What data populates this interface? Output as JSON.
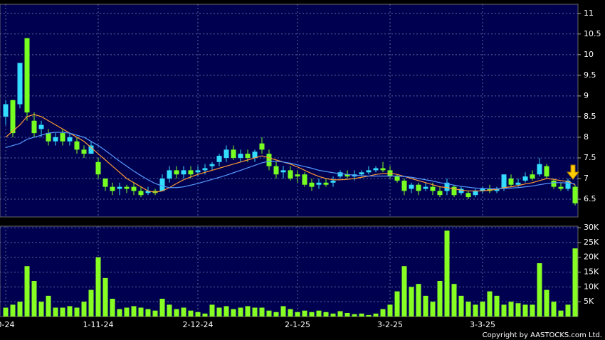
{
  "chart_data": {
    "type": "candlestick",
    "categories": [
      "0-24",
      null,
      null,
      null,
      null,
      null,
      null,
      null,
      null,
      null,
      null,
      null,
      null,
      "1-11-24",
      null,
      null,
      null,
      null,
      null,
      null,
      null,
      null,
      null,
      null,
      null,
      null,
      null,
      "2-12-24",
      null,
      null,
      null,
      null,
      null,
      null,
      null,
      null,
      null,
      null,
      null,
      null,
      null,
      "2-1-25",
      null,
      null,
      null,
      null,
      null,
      null,
      null,
      null,
      null,
      null,
      null,
      null,
      "3-2-25",
      null,
      null,
      null,
      null,
      null,
      null,
      null,
      null,
      null,
      null,
      null,
      null,
      "3-3-25",
      null,
      null,
      null,
      null,
      null,
      null,
      null,
      null,
      null,
      null,
      null,
      null,
      null
    ],
    "open": [
      8.5,
      8.9,
      8.8,
      10.4,
      8.4,
      8.2,
      8.1,
      7.9,
      8.1,
      7.9,
      7.9,
      7.7,
      7.6,
      7.4,
      7.0,
      6.8,
      6.75,
      6.8,
      6.8,
      6.7,
      6.65,
      6.7,
      6.7,
      7.0,
      7.2,
      7.1,
      7.2,
      7.15,
      7.2,
      7.3,
      7.4,
      7.5,
      7.7,
      7.5,
      7.6,
      7.5,
      7.85,
      7.6,
      7.3,
      7.15,
      7.2,
      7.1,
      7.1,
      6.9,
      6.85,
      6.9,
      6.9,
      7.05,
      7.1,
      7.05,
      7.1,
      7.15,
      7.2,
      7.25,
      7.2,
      7.05,
      6.95,
      6.75,
      6.85,
      6.75,
      6.8,
      6.7,
      6.7,
      6.8,
      6.65,
      6.65,
      6.6,
      6.7,
      6.75,
      6.7,
      6.75,
      7.0,
      6.85,
      6.95,
      7.1,
      7.1,
      7.3,
      6.95,
      6.8,
      6.75,
      6.8
    ],
    "high": [
      8.9,
      8.9,
      9.8,
      10.4,
      8.6,
      8.4,
      8.2,
      8.1,
      8.2,
      8.1,
      8.0,
      7.8,
      7.9,
      7.5,
      7.0,
      6.9,
      6.9,
      6.85,
      6.9,
      6.8,
      6.8,
      6.75,
      7.1,
      7.3,
      7.3,
      7.3,
      7.3,
      7.3,
      7.35,
      7.4,
      7.6,
      7.8,
      7.8,
      7.7,
      7.7,
      7.7,
      8.0,
      7.7,
      7.4,
      7.3,
      7.3,
      7.2,
      7.15,
      7.0,
      7.0,
      7.0,
      7.05,
      7.2,
      7.2,
      7.2,
      7.2,
      7.3,
      7.3,
      7.4,
      7.3,
      7.1,
      7.0,
      6.9,
      6.9,
      6.9,
      6.9,
      6.8,
      7.0,
      6.85,
      6.8,
      6.7,
      6.75,
      6.8,
      6.85,
      6.8,
      7.1,
      7.1,
      7.0,
      7.15,
      7.2,
      7.5,
      7.35,
      7.0,
      6.9,
      7.0,
      6.85
    ],
    "low": [
      8.3,
      8.0,
      8.7,
      8.4,
      8.0,
      8.0,
      7.8,
      7.8,
      7.8,
      7.8,
      7.6,
      7.5,
      7.6,
      7.0,
      6.7,
      6.6,
      6.6,
      6.65,
      6.6,
      6.55,
      6.6,
      6.6,
      6.7,
      6.9,
      7.0,
      7.0,
      7.0,
      7.05,
      7.1,
      7.2,
      7.3,
      7.4,
      7.45,
      7.4,
      7.4,
      7.4,
      7.6,
      7.2,
      7.0,
      7.0,
      6.95,
      6.9,
      6.8,
      6.7,
      6.75,
      6.8,
      6.8,
      7.0,
      7.0,
      6.95,
      7.05,
      7.1,
      7.15,
      7.15,
      7.0,
      6.9,
      6.6,
      6.65,
      6.6,
      6.7,
      6.6,
      6.55,
      6.6,
      6.55,
      6.6,
      6.5,
      6.55,
      6.65,
      6.65,
      6.65,
      6.7,
      6.8,
      6.8,
      6.9,
      6.95,
      7.05,
      7.0,
      6.75,
      6.7,
      6.7,
      6.35
    ],
    "close": [
      8.8,
      8.1,
      9.8,
      8.6,
      8.1,
      8.3,
      7.9,
      8.0,
      7.9,
      8.0,
      7.7,
      7.6,
      7.8,
      7.1,
      6.8,
      6.7,
      6.8,
      6.75,
      6.7,
      6.6,
      6.7,
      6.65,
      7.0,
      7.2,
      7.1,
      7.2,
      7.1,
      7.2,
      7.25,
      7.35,
      7.55,
      7.7,
      7.5,
      7.6,
      7.5,
      7.65,
      7.7,
      7.3,
      7.1,
      7.2,
      7.0,
      7.05,
      6.85,
      6.8,
      6.9,
      6.85,
      6.95,
      7.15,
      7.05,
      7.1,
      7.15,
      7.2,
      7.25,
      7.2,
      7.05,
      6.95,
      6.7,
      6.85,
      6.7,
      6.8,
      6.7,
      6.6,
      6.9,
      6.6,
      6.75,
      6.55,
      6.7,
      6.75,
      6.7,
      6.75,
      7.1,
      6.85,
      6.9,
      7.05,
      7.0,
      7.35,
      7.05,
      6.8,
      6.75,
      6.95,
      6.4
    ],
    "up_color": "#33ddff",
    "down_color": "#77ff22",
    "series": [
      {
        "color": "#ff9933",
        "values": [
          8.0,
          8.15,
          8.3,
          8.5,
          8.55,
          8.5,
          8.4,
          8.3,
          8.2,
          8.1,
          8.0,
          7.9,
          7.75,
          7.6,
          7.45,
          7.3,
          7.15,
          7.0,
          6.9,
          6.8,
          6.7,
          6.67,
          6.7,
          6.78,
          6.88,
          6.97,
          7.04,
          7.1,
          7.15,
          7.2,
          7.25,
          7.3,
          7.35,
          7.4,
          7.45,
          7.5,
          7.55,
          7.5,
          7.45,
          7.4,
          7.35,
          7.28,
          7.2,
          7.12,
          7.05,
          7.0,
          6.97,
          6.97,
          6.98,
          7.0,
          7.03,
          7.06,
          7.1,
          7.12,
          7.13,
          7.1,
          7.05,
          7.0,
          6.95,
          6.9,
          6.85,
          6.8,
          6.78,
          6.75,
          6.72,
          6.7,
          6.7,
          6.7,
          6.72,
          6.74,
          6.78,
          6.8,
          6.83,
          6.87,
          6.9,
          6.95,
          7.0,
          6.98,
          6.95,
          6.93,
          6.85
        ]
      },
      {
        "color": "#5599ff",
        "values": [
          7.75,
          7.8,
          7.85,
          7.95,
          8.0,
          8.05,
          8.1,
          8.12,
          8.12,
          8.1,
          8.05,
          8.0,
          7.9,
          7.8,
          7.68,
          7.55,
          7.42,
          7.3,
          7.18,
          7.07,
          6.97,
          6.88,
          6.82,
          6.78,
          6.78,
          6.8,
          6.84,
          6.88,
          6.93,
          6.98,
          7.03,
          7.08,
          7.14,
          7.2,
          7.26,
          7.32,
          7.38,
          7.42,
          7.42,
          7.4,
          7.37,
          7.33,
          7.29,
          7.25,
          7.2,
          7.17,
          7.14,
          7.12,
          7.1,
          7.08,
          7.07,
          7.06,
          7.06,
          7.06,
          7.06,
          7.06,
          7.05,
          7.03,
          7.0,
          6.97,
          6.94,
          6.9,
          6.87,
          6.84,
          6.81,
          6.79,
          6.77,
          6.76,
          6.75,
          6.75,
          6.76,
          6.77,
          6.78,
          6.8,
          6.82,
          6.85,
          6.88,
          6.9,
          6.9,
          6.89,
          6.87
        ]
      }
    ],
    "ylim": [
      6.07,
      11.22
    ],
    "yticks": [
      6.5,
      7,
      7.5,
      8,
      8.5,
      9,
      9.5,
      10,
      10.5,
      11
    ],
    "grid": true,
    "volume": {
      "color": "#88ff22",
      "ylim": [
        0,
        30500
      ],
      "yticks": [
        {
          "value": 5000,
          "label": "5K"
        },
        {
          "value": 10000,
          "label": "10K"
        },
        {
          "value": 15000,
          "label": "15K"
        },
        {
          "value": 20000,
          "label": "20K"
        },
        {
          "value": 25000,
          "label": "25K"
        },
        {
          "value": 30000,
          "label": "30K"
        }
      ],
      "values": [
        3000,
        4000,
        5000,
        17000,
        12000,
        5000,
        7000,
        3000,
        3000,
        3500,
        3000,
        5000,
        9000,
        20000,
        13000,
        6000,
        2500,
        3000,
        3500,
        3000,
        2500,
        2000,
        6000,
        4000,
        2500,
        3000,
        2000,
        1500,
        1000,
        4000,
        3000,
        3500,
        2500,
        3000,
        3500,
        3000,
        3000,
        2000,
        1500,
        3500,
        2500,
        1500,
        2000,
        1500,
        2000,
        1500,
        1000,
        1800,
        1200,
        800,
        1000,
        500,
        1000,
        2500,
        4000,
        8500,
        17000,
        10000,
        11000,
        7000,
        5000,
        12000,
        29000,
        11000,
        7000,
        5000,
        4000,
        5000,
        8500,
        7000,
        4000,
        5000,
        4500,
        4000,
        4000,
        18000,
        9000,
        5000,
        2000,
        4000,
        23000
      ]
    },
    "copyright": "Copyright by AASTOCKS.com Ltd."
  }
}
